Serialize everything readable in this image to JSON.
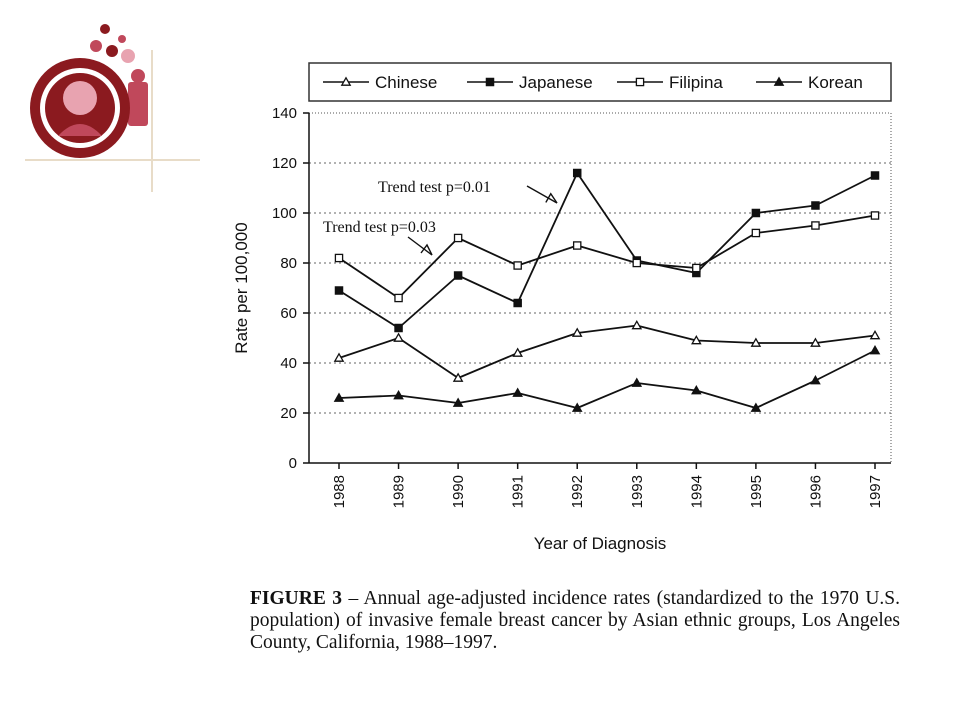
{
  "logo": {
    "icon": "people-group-icon",
    "colors": {
      "dark": "#8b1a1f",
      "mid": "#c0485b",
      "light": "#e8a3b0",
      "rule": "#e8dcc8"
    }
  },
  "caption": {
    "label": "FIGURE 3",
    "text": "– Annual age-adjusted incidence rates (standardized to the 1970 U.S. population) of invasive female breast cancer by Asian ethnic groups, Los Angeles County, California, 1988–1997."
  },
  "chart_data": {
    "type": "line",
    "x": [
      "1988",
      "1989",
      "1990",
      "1991",
      "1992",
      "1993",
      "1994",
      "1995",
      "1996",
      "1997"
    ],
    "xlabel": "Year of Diagnosis",
    "ylabel": "Rate per 100,000",
    "ylim": [
      0,
      140
    ],
    "yticks": [
      0,
      20,
      40,
      60,
      80,
      100,
      120,
      140
    ],
    "grid": "horizontal dotted",
    "legend_position": "top",
    "series": [
      {
        "name": "Chinese",
        "marker": "open-triangle",
        "values": [
          42,
          50,
          34,
          44,
          52,
          55,
          49,
          48,
          48,
          51
        ]
      },
      {
        "name": "Japanese",
        "marker": "filled-square",
        "values": [
          69,
          54,
          75,
          64,
          116,
          81,
          76,
          100,
          103,
          115
        ]
      },
      {
        "name": "Filipina",
        "marker": "open-square",
        "values": [
          82,
          66,
          90,
          79,
          87,
          80,
          78,
          92,
          95,
          99
        ]
      },
      {
        "name": "Korean",
        "marker": "filled-triangle",
        "values": [
          26,
          27,
          24,
          28,
          22,
          32,
          29,
          22,
          33,
          45
        ]
      }
    ],
    "annotations": [
      {
        "text": "Trend test p=0.01",
        "target_series": "Japanese",
        "target_x": "1992"
      },
      {
        "text": "Trend test p=0.03",
        "target_series": "Filipina",
        "target_x": "1990"
      }
    ]
  }
}
